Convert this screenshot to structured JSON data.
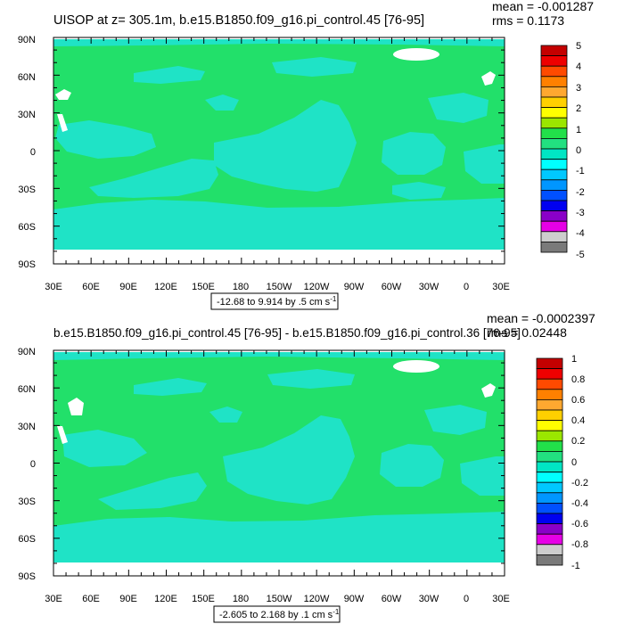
{
  "panels": [
    {
      "title": "UISOP at z= 305.1m, b.e15.B1850.f09_g16.pi_control.45 [76-95]",
      "stats": {
        "mean": "mean = -0.001287",
        "rms": "rms = 0.1173"
      },
      "range_note": {
        "text": "-12.68 to 9.914 by .5 cm s",
        "exponent": "-1"
      },
      "lat_labels": [
        "90N",
        "60N",
        "30N",
        "0",
        "30S",
        "60S",
        "90S"
      ],
      "lon_labels": [
        "30E",
        "60E",
        "90E",
        "120E",
        "150E",
        "180",
        "150W",
        "120W",
        "90W",
        "60W",
        "30W",
        "0",
        "30E"
      ],
      "colorbar_labels": [
        "5",
        "4",
        "3",
        "2",
        "1",
        "0",
        "-1",
        "-2",
        "-3",
        "-4",
        "-5"
      ]
    },
    {
      "title": "b.e15.B1850.f09_g16.pi_control.45 [76-95] - b.e15.B1850.f09_g16.pi_control.36 [76-95]",
      "stats": {
        "mean": "mean = -0.0002397",
        "rms": "rms = 0.02448"
      },
      "range_note": {
        "text": "-2.605 to 2.168 by .1 cm s",
        "exponent": "-1"
      },
      "lat_labels": [
        "90N",
        "60N",
        "30N",
        "0",
        "30S",
        "60S",
        "90S"
      ],
      "lon_labels": [
        "30E",
        "60E",
        "90E",
        "120E",
        "150E",
        "180",
        "150W",
        "120W",
        "90W",
        "60W",
        "30W",
        "0",
        "30E"
      ],
      "colorbar_labels": [
        "1",
        "0.8",
        "0.6",
        "0.4",
        "0.2",
        "0",
        "-0.2",
        "-0.4",
        "-0.6",
        "-0.8",
        "-1"
      ]
    }
  ],
  "colors": {
    "palette": [
      "#c40000",
      "#ee0000",
      "#ff4a00",
      "#ff8000",
      "#ffa830",
      "#ffd000",
      "#ffff00",
      "#9be600",
      "#22e04a",
      "#22e080",
      "#00e6c4",
      "#00ffff",
      "#00c8ff",
      "#0096ff",
      "#0050ff",
      "#0000f0",
      "#8a00c8",
      "#e600e6",
      "#cdcdcd",
      "#7a7a7a"
    ],
    "background_field": "#22e06a",
    "anomaly_field": "#1fe3c6"
  }
}
